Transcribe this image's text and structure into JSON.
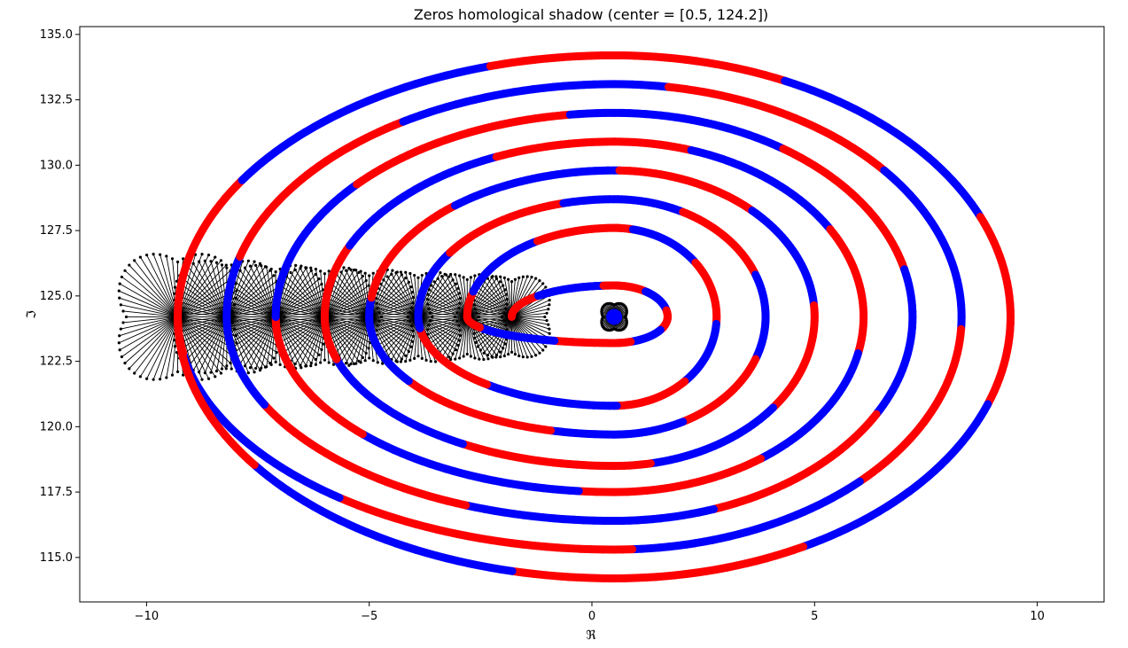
{
  "chart_data": {
    "type": "scatter",
    "title": "Zeros homological shadow (center = [0.5, 124.2])",
    "xlabel": "ℜ",
    "ylabel": "ℑ",
    "xlim": [
      -11.5,
      11.5
    ],
    "ylim": [
      113.3,
      135.3
    ],
    "x_ticks": [
      -10,
      -5,
      0,
      5,
      10
    ],
    "x_tick_labels": [
      "−10",
      "−5",
      "0",
      "5",
      "10"
    ],
    "y_ticks": [
      115.0,
      117.5,
      120.0,
      122.5,
      125.0,
      127.5,
      130.0,
      132.5,
      135.0
    ],
    "y_tick_labels": [
      "115.0",
      "117.5",
      "120.0",
      "122.5",
      "125.0",
      "127.5",
      "130.0",
      "132.5",
      "135.0"
    ],
    "grid": false,
    "legend": "none",
    "center": [
      0.5,
      124.2
    ],
    "colors": {
      "positive": "#ff0000",
      "negative": "#0000ff",
      "arrows": "#000000"
    },
    "spiral": {
      "description_key": "phase-colored spiral traced around the center",
      "turns": [
        {
          "left_x": -1.8,
          "right_x": 1.7,
          "top_y": 125.4,
          "bottom_y": 123.2
        },
        {
          "left_x": -2.8,
          "right_x": 2.8,
          "top_y": 127.6,
          "bottom_y": 120.8
        },
        {
          "left_x": -3.9,
          "right_x": 3.9,
          "top_y": 128.7,
          "bottom_y": 119.7
        },
        {
          "left_x": -5.0,
          "right_x": 5.0,
          "top_y": 129.8,
          "bottom_y": 118.5
        },
        {
          "left_x": -6.0,
          "right_x": 6.1,
          "top_y": 130.9,
          "bottom_y": 117.5
        },
        {
          "left_x": -7.1,
          "right_x": 7.2,
          "top_y": 132.0,
          "bottom_y": 116.4
        },
        {
          "left_x": -8.2,
          "right_x": 8.3,
          "top_y": 133.1,
          "bottom_y": 115.3
        },
        {
          "left_x": -9.3,
          "right_x": 9.4,
          "top_y": 134.2,
          "bottom_y": 114.2
        },
        {
          "left_x": -9.3,
          "right_x": 10.5,
          "top_y": 134.2,
          "bottom_y": 114.2
        }
      ]
    },
    "arrow_fans": [
      {
        "x": -9.3,
        "y": 124.2,
        "radius": 2.8
      },
      {
        "x": -8.2,
        "y": 124.2,
        "radius": 2.5
      },
      {
        "x": -7.1,
        "y": 124.2,
        "radius": 2.3
      },
      {
        "x": -6.0,
        "y": 124.2,
        "radius": 2.2
      },
      {
        "x": -5.0,
        "y": 124.2,
        "radius": 2.1
      },
      {
        "x": -3.9,
        "y": 124.2,
        "radius": 2.0
      },
      {
        "x": -2.8,
        "y": 124.2,
        "radius": 1.9
      },
      {
        "x": -1.8,
        "y": 124.2,
        "radius": 1.8
      },
      {
        "x": 0.5,
        "y": 124.2,
        "radius": 0.6
      }
    ]
  }
}
